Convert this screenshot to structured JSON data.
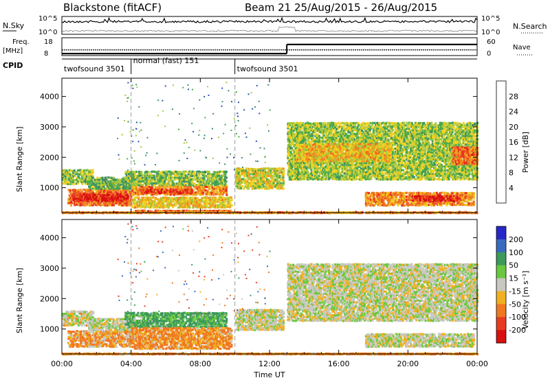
{
  "header": {
    "station": "Blackstone (fitACF)",
    "beam_dates": "Beam 21  25/Aug/2015 - 26/Aug/2015"
  },
  "colors": {
    "background": "#ffffff",
    "ink": "#000000",
    "gray_scatter": "#c8c8c0"
  },
  "chart_data": [
    {
      "type": "line",
      "name": "nsky-nsearch-panel",
      "left_label": "N.Sky",
      "right_label": "N.Search",
      "left_ticks": [
        "10^5",
        "10^0"
      ],
      "right_ticks": [
        "10^5",
        "10^0"
      ],
      "x_range_hours": [
        0,
        24
      ]
    },
    {
      "type": "line",
      "name": "freq-nave-panel",
      "left_label_line1": "Freq.",
      "left_label_line2": "[MHz]",
      "right_label": "Nave",
      "left_ticks": [
        "18",
        "8"
      ],
      "right_ticks": [
        "60",
        "0"
      ],
      "freq_mhz": [
        {
          "from": 0,
          "to": 24,
          "value": 10.5
        }
      ],
      "nave_steps": [
        {
          "from": 0,
          "to": 13,
          "value": 3
        },
        {
          "from": 13,
          "to": 24,
          "value": 50
        }
      ],
      "x_range_hours": [
        0,
        24
      ]
    },
    {
      "type": "table",
      "name": "cpid-bar",
      "label": "CPID",
      "segments": [
        {
          "from": 0,
          "to": 4,
          "label": "twofsound 3501"
        },
        {
          "from": 4,
          "to": 10,
          "label": "normal (fast) 151"
        },
        {
          "from": 10,
          "to": 24,
          "label": "twofsound 3501"
        }
      ],
      "dividers_hours": [
        4,
        10
      ]
    },
    {
      "type": "heatmap",
      "name": "power-panel",
      "ylabel": "Slant Range [km]",
      "yticks": [
        1000,
        2000,
        3000,
        4000
      ],
      "ylim": [
        180,
        4600
      ],
      "colorbar_label": "Power [dB]",
      "colorbar_ticks": [
        4,
        8,
        12,
        16,
        20,
        24,
        28
      ],
      "colorbar_range": [
        0,
        32
      ],
      "colorscale": [
        "#1a1aff",
        "#2850b8",
        "#3c8a6a",
        "#4aa84a",
        "#a8c83c",
        "#f0d020",
        "#f0a020",
        "#f07020",
        "#e83020",
        "#d81010"
      ],
      "echo_regions": [
        {
          "t0": 0.0,
          "t1": 1.8,
          "r0": 1150,
          "r1": 1650,
          "value": 14
        },
        {
          "t0": 0.3,
          "t1": 4.0,
          "r0": 450,
          "r1": 1000,
          "value": 24
        },
        {
          "t0": 0.6,
          "t1": 3.8,
          "r0": 600,
          "r1": 850,
          "value": 29
        },
        {
          "t0": 1.5,
          "t1": 4.2,
          "r0": 1000,
          "r1": 1400,
          "value": 12
        },
        {
          "t0": 3.6,
          "t1": 9.5,
          "r0": 1100,
          "r1": 1600,
          "value": 13
        },
        {
          "t0": 4.0,
          "t1": 9.5,
          "r0": 800,
          "r1": 1100,
          "value": 22
        },
        {
          "t0": 4.5,
          "t1": 7.5,
          "r0": 850,
          "r1": 1000,
          "value": 27
        },
        {
          "t0": 4.0,
          "t1": 9.8,
          "r0": 380,
          "r1": 750,
          "value": 18
        },
        {
          "t0": 4.2,
          "t1": 9.8,
          "r0": 230,
          "r1": 300,
          "value": 24
        },
        {
          "t0": 0.0,
          "t1": 24.0,
          "r0": 200,
          "r1": 240,
          "value": 22
        },
        {
          "t0": 10.0,
          "t1": 12.8,
          "r0": 1000,
          "r1": 1700,
          "value": 16
        },
        {
          "t0": 13.0,
          "t1": 24.0,
          "r0": 1300,
          "r1": 3200,
          "value": 14
        },
        {
          "t0": 13.5,
          "t1": 19.0,
          "r0": 1900,
          "r1": 2500,
          "value": 19
        },
        {
          "t0": 17.5,
          "t1": 23.8,
          "r0": 450,
          "r1": 900,
          "value": 22
        },
        {
          "t0": 20.2,
          "t1": 23.0,
          "r0": 600,
          "r1": 800,
          "value": 28
        },
        {
          "t0": 22.5,
          "t1": 24.0,
          "r0": 1800,
          "r1": 2400,
          "value": 24
        }
      ],
      "x_range_hours": [
        0,
        24
      ]
    },
    {
      "type": "heatmap",
      "name": "velocity-panel",
      "ylabel": "Slant Range [km]",
      "yticks": [
        1000,
        2000,
        3000,
        4000
      ],
      "ylim": [
        180,
        4600
      ],
      "colorbar_label": "Velocity [m s⁻¹]",
      "colorbar_ticks": [
        "200",
        "100",
        "50",
        "15",
        "-15",
        "-50",
        "-100",
        "-200"
      ],
      "colorbar_colors": [
        "#2828c8",
        "#3a6ac0",
        "#3c9a5a",
        "#6ac840",
        "#c8c8c0",
        "#f0b020",
        "#f07820",
        "#e83c20",
        "#d81010"
      ],
      "echo_regions": [
        {
          "t0": 0.0,
          "t1": 1.8,
          "r0": 1150,
          "r1": 1650,
          "value": -5
        },
        {
          "t0": 0.3,
          "t1": 4.0,
          "r0": 450,
          "r1": 1000,
          "value": -30
        },
        {
          "t0": 1.5,
          "t1": 4.2,
          "r0": 1000,
          "r1": 1400,
          "value": 0
        },
        {
          "t0": 3.6,
          "t1": 9.5,
          "r0": 1100,
          "r1": 1600,
          "value": 40
        },
        {
          "t0": 4.0,
          "t1": 9.8,
          "r0": 380,
          "r1": 1100,
          "value": -40
        },
        {
          "t0": 10.0,
          "t1": 12.8,
          "r0": 1000,
          "r1": 1700,
          "value": 0
        },
        {
          "t0": 13.0,
          "t1": 24.0,
          "r0": 1300,
          "r1": 3200,
          "value": 0
        },
        {
          "t0": 17.5,
          "t1": 23.8,
          "r0": 450,
          "r1": 900,
          "value": 0
        },
        {
          "t0": 0.0,
          "t1": 24.0,
          "r0": 200,
          "r1": 240,
          "value": -40
        }
      ],
      "x_range_hours": [
        0,
        24
      ]
    }
  ],
  "x_axis": {
    "ticks": [
      "00:00",
      "04:00",
      "08:00",
      "12:00",
      "16:00",
      "20:00",
      "00:00"
    ],
    "tick_hours": [
      0,
      4,
      8,
      12,
      16,
      20,
      24
    ],
    "label": "Time UT"
  }
}
